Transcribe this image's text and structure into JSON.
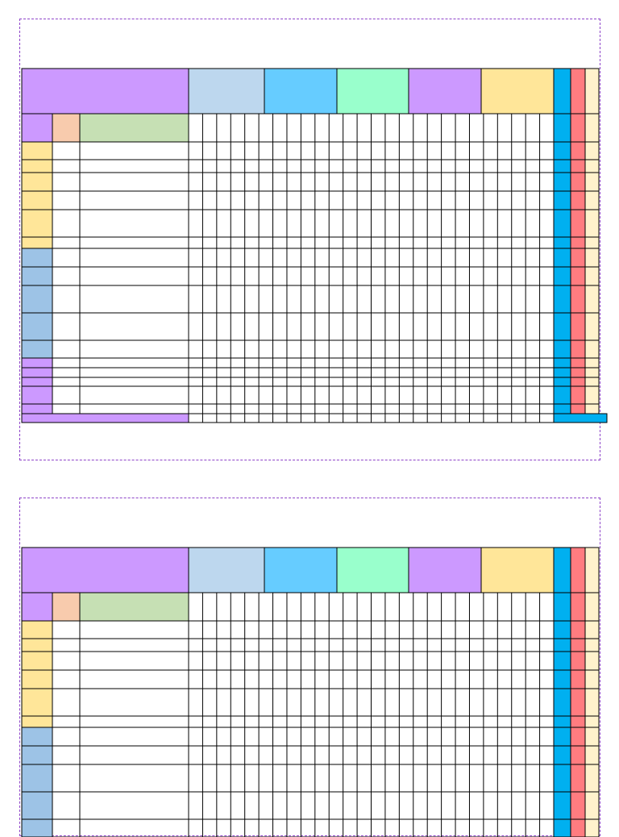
{
  "document": {
    "title": "",
    "pages": 2,
    "header_colors": [
      "#cc99ff",
      "#bdd7ee",
      "#66ccff",
      "#99ffcc",
      "#cc99ff",
      "#ffe699",
      "#00b0f0",
      "#ff7c80",
      "#fff2cc"
    ],
    "subheader_colors": [
      "#cc99ff",
      "#f8cbad",
      "#c6e0b4"
    ],
    "row_group_colors": [
      "#ffe699",
      "#9dc3e6",
      "#cc99ff"
    ],
    "footer_colors": [
      "#cc99ff",
      "#00b0f0"
    ],
    "line_color": "#000000",
    "page_border_color": "#8e44c9"
  }
}
